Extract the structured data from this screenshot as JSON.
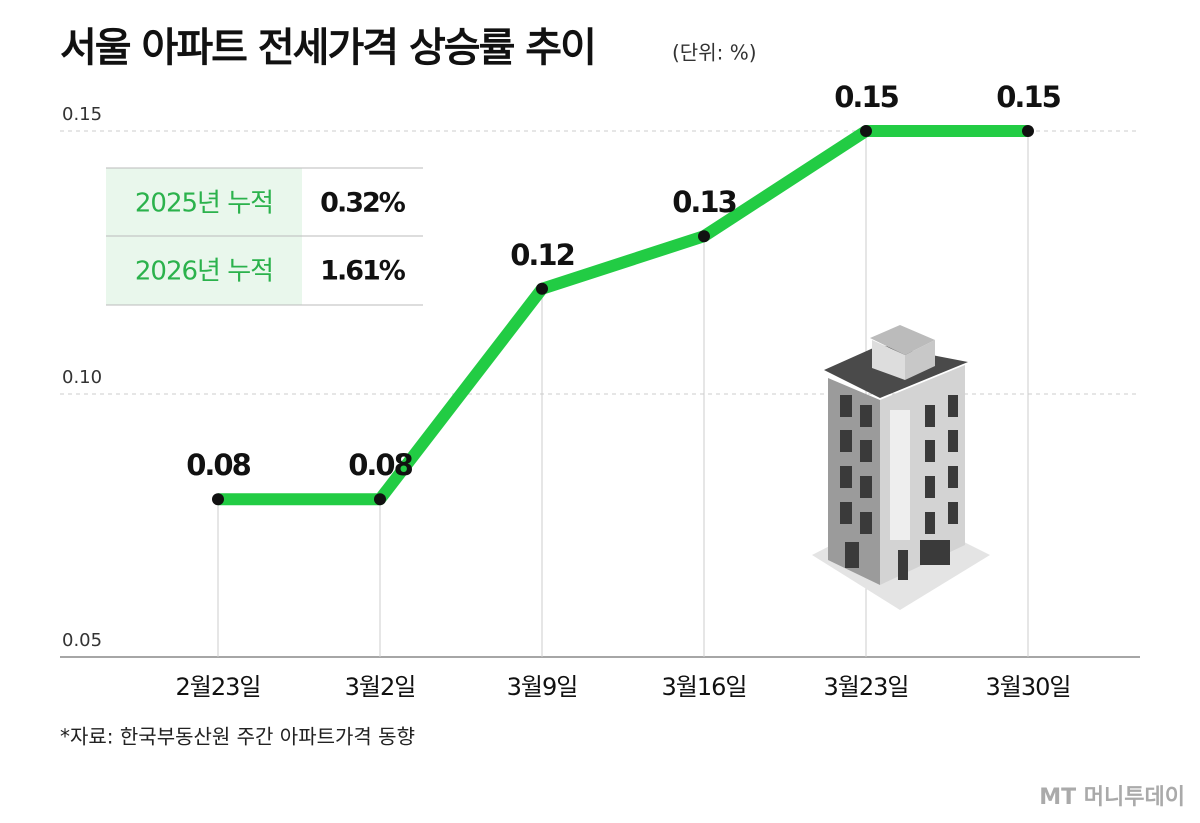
{
  "chart_data": {
    "type": "line",
    "title": "서울 아파트 전세가격 상승률 추이",
    "subtitle": "(단위: %)",
    "categories": [
      "2월23일",
      "3월2일",
      "3월9일",
      "3월16일",
      "3월23일",
      "3월30일"
    ],
    "values": [
      0.08,
      0.08,
      0.12,
      0.13,
      0.15,
      0.15
    ],
    "color": "#22cc44",
    "ylim": [
      0.05,
      0.15
    ],
    "yticks": [
      0.05,
      {
        "value": 0.1,
        "label": "0.10"
      },
      0.15
    ],
    "grid": true
  },
  "table": {
    "rows": [
      [
        "2025년 누적",
        "0.32%"
      ],
      [
        "2026년 누적",
        "1.61%"
      ]
    ]
  },
  "source": "*자료: 한국부동산원 주간 아파트가격 동향",
  "logo": "MT 머니투데이"
}
